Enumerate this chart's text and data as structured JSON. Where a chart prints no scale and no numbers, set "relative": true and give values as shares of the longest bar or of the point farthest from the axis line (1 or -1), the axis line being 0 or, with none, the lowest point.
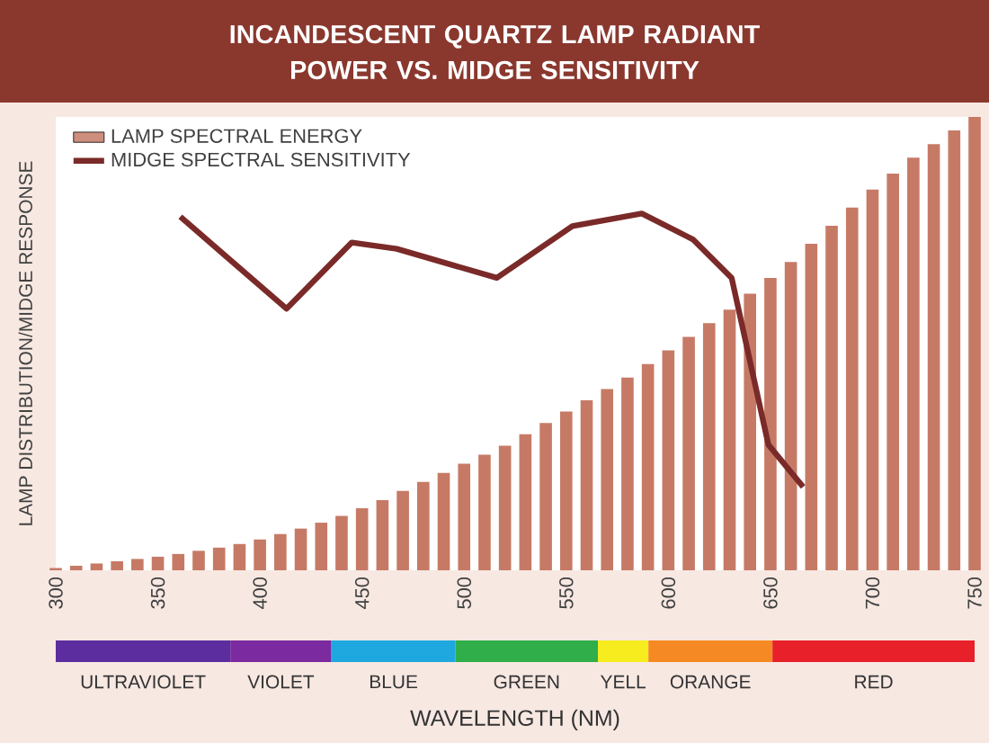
{
  "chart_data": {
    "type": "bar",
    "title": "INCANDESCENT QUARTZ LAMP RADIANT POWER VS. MIDGE SENSITIVITY",
    "xlabel": "WAVELENGTH (NM)",
    "ylabel": "LAMP DISTRIBUTION/MIDGE RESPONSE",
    "relative": true,
    "xlim": [
      300,
      750
    ],
    "xticks": [
      300,
      350,
      400,
      450,
      500,
      550,
      600,
      650,
      700,
      750
    ],
    "legend": "top left",
    "series": [
      {
        "name": "LAMP SPECTRAL ENERGY",
        "color": "#c67a66",
        "x": [
          300,
          310,
          320,
          330,
          340,
          350,
          360,
          370,
          380,
          390,
          400,
          410,
          420,
          430,
          440,
          450,
          460,
          470,
          480,
          490,
          500,
          510,
          520,
          530,
          540,
          550,
          560,
          570,
          580,
          590,
          600,
          610,
          620,
          630,
          640,
          650,
          660,
          670,
          680,
          690,
          700,
          710,
          720,
          730,
          740,
          750
        ],
        "values": [
          0.005,
          0.01,
          0.015,
          0.02,
          0.025,
          0.03,
          0.036,
          0.043,
          0.05,
          0.058,
          0.068,
          0.08,
          0.092,
          0.105,
          0.12,
          0.137,
          0.155,
          0.175,
          0.195,
          0.215,
          0.235,
          0.255,
          0.275,
          0.3,
          0.325,
          0.35,
          0.375,
          0.4,
          0.425,
          0.455,
          0.485,
          0.515,
          0.545,
          0.575,
          0.61,
          0.645,
          0.68,
          0.72,
          0.76,
          0.8,
          0.84,
          0.875,
          0.91,
          0.94,
          0.97,
          1.0
        ]
      },
      {
        "name": "MIDGE SPECTRAL SENSITIVITY",
        "type": "line",
        "color": "#7a2a28",
        "x": [
          361,
          413,
          445,
          467,
          516,
          553,
          587,
          612,
          631,
          649,
          666
        ],
        "values": [
          0.78,
          0.577,
          0.723,
          0.709,
          0.645,
          0.759,
          0.787,
          0.73,
          0.645,
          0.277,
          0.184
        ]
      }
    ],
    "annotations": [
      "ULTRAVIOLET",
      "VIOLET",
      "BLUE",
      "GREEN",
      "YELL",
      "ORANGE",
      "RED"
    ]
  }
}
